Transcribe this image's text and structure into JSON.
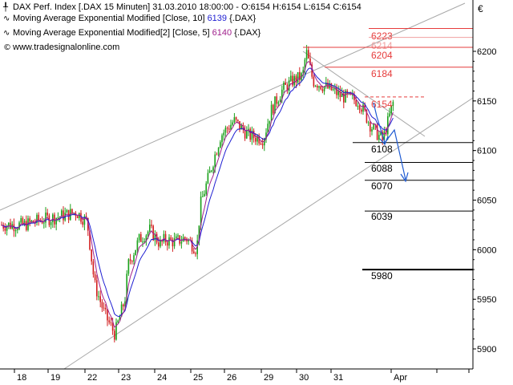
{
  "legend": {
    "line1": "DAX Perf. Index [.DAX  15 Minuten] 31.03.2010 18:00:00 - O:6154 H:6154 L:6154 C:6154",
    "line2_text": "Moving Average Exponential Modified [Close, 10] ",
    "line2_value": "6139",
    "line2_suffix": " {.DAX}",
    "line3_text": "Moving Average Exponential Modified[2] [Close, 5] ",
    "line3_value": "6140",
    "line3_suffix": " {.DAX}",
    "source": "www.tradesignalonline.com",
    "glyph_price": "╀",
    "glyph_ma": "∿",
    "glyph_copyright": "©"
  },
  "currency_symbol": "€",
  "chart_data": {
    "type": "candlestick",
    "title": "DAX Perf. Index [.DAX  15 Minuten]",
    "y_ticks": [
      5900,
      5950,
      6000,
      6050,
      6100,
      6150,
      6200
    ],
    "ylim": [
      5885,
      6225
    ],
    "x_ticks": [
      "18",
      "19",
      "22",
      "23",
      "24",
      "25",
      "26",
      "29",
      "30",
      "31",
      "Apr"
    ],
    "grid": false,
    "colors": {
      "up": "#1aa01a",
      "down": "#d21e1e",
      "ma10": "#1e1ed2",
      "ma5": "#a0208c",
      "channel": "#a8a8a8",
      "resistance": "#e63c3c",
      "support": "#000000",
      "arrow": "#1e5ad2"
    },
    "close_path": [
      [
        "18",
        6025
      ],
      [
        "18.5",
        6030
      ],
      [
        "19",
        6033
      ],
      [
        "19.5",
        6038
      ],
      [
        "19.8",
        6028
      ],
      [
        "22",
        5965
      ],
      [
        "22.3",
        5935
      ],
      [
        "22.6",
        5915
      ],
      [
        "22.9",
        5950
      ],
      [
        "23",
        5985
      ],
      [
        "23.3",
        6010
      ],
      [
        "23.6",
        6020
      ],
      [
        "23.9",
        6005
      ],
      [
        "24",
        6010
      ],
      [
        "24.3",
        6008
      ],
      [
        "24.6",
        6012
      ],
      [
        "24.9",
        6000
      ],
      [
        "25",
        6045
      ],
      [
        "25.3",
        6080
      ],
      [
        "25.6",
        6115
      ],
      [
        "26",
        6130
      ],
      [
        "26.4",
        6115
      ],
      [
        "26.8",
        6112
      ],
      [
        "29",
        6140
      ],
      [
        "29.3",
        6160
      ],
      [
        "29.6",
        6170
      ],
      [
        "29.9",
        6175
      ],
      [
        "30",
        6200
      ],
      [
        "30.2",
        6170
      ],
      [
        "30.5",
        6165
      ],
      [
        "30.8",
        6160
      ],
      [
        "31",
        6155
      ],
      [
        "31.3",
        6150
      ],
      [
        "31.5",
        6125
      ],
      [
        "31.7",
        6110
      ],
      [
        "31.9",
        6154
      ]
    ],
    "resistance_levels": [
      6223,
      6214,
      6204,
      6184,
      6154
    ],
    "support_levels": [
      6108,
      6088,
      6070,
      6039,
      5980
    ]
  }
}
